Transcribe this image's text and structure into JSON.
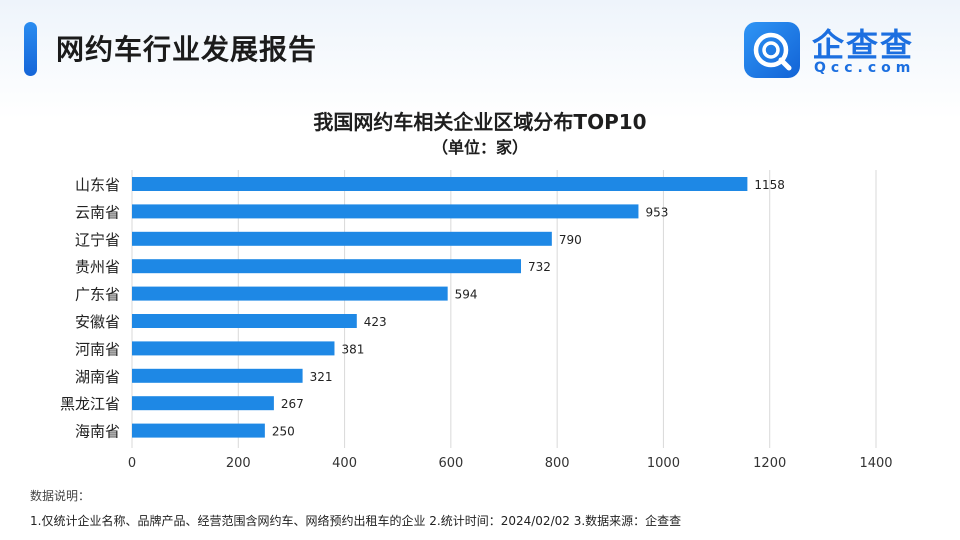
{
  "header": {
    "title": "网约车行业发展报告"
  },
  "logo": {
    "name": "企查查",
    "domain": "Qcc.com",
    "color": "#1c6fe0"
  },
  "chart_data": {
    "type": "bar",
    "orientation": "horizontal",
    "title": "我国网约车相关企业区域分布TOP10",
    "subtitle": "（单位：家）",
    "categories": [
      "山东省",
      "云南省",
      "辽宁省",
      "贵州省",
      "广东省",
      "安徽省",
      "河南省",
      "湖南省",
      "黑龙江省",
      "海南省"
    ],
    "values": [
      1158,
      953,
      790,
      732,
      594,
      423,
      381,
      321,
      267,
      250
    ],
    "xlim": [
      0,
      1400
    ],
    "xticks": [
      0,
      200,
      400,
      600,
      800,
      1000,
      1200,
      1400
    ],
    "grid": true,
    "bar_color": "#1e88e5",
    "data_labels": true
  },
  "footnote": {
    "heading": "数据说明：",
    "text": "1.仅统计企业名称、品牌产品、经营范围含网约车、网络预约出租车的企业   2.统计时间：2024/02/02    3.数据来源：企查查"
  }
}
